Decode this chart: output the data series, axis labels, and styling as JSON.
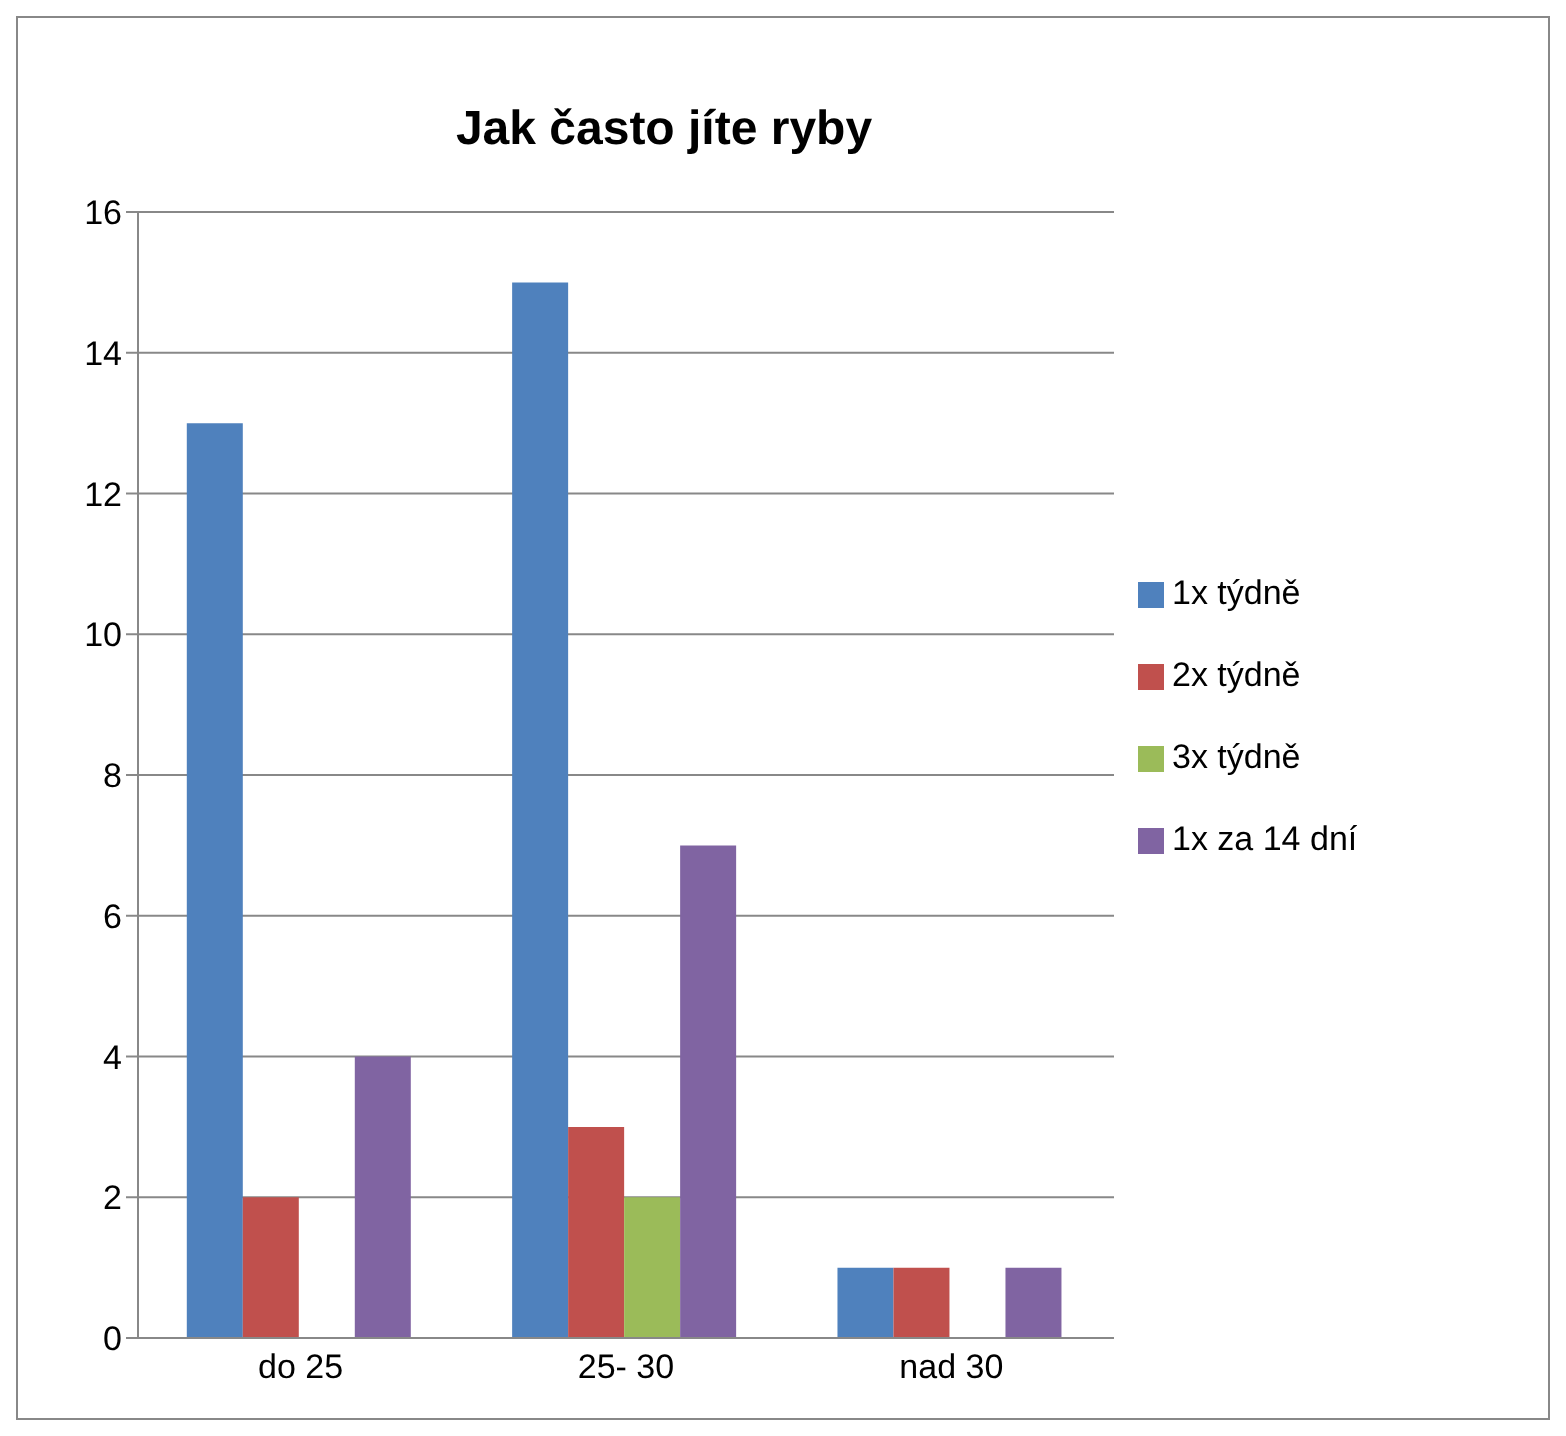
{
  "chart_data": {
    "type": "bar",
    "title": "Jak často jíte ryby",
    "categories": [
      "do 25",
      "25- 30",
      "nad 30"
    ],
    "series": [
      {
        "name": "1x týdně",
        "color": "#4f81bd",
        "values": [
          13,
          15,
          1
        ]
      },
      {
        "name": "2x týdně",
        "color": "#c0504d",
        "values": [
          2,
          3,
          1
        ]
      },
      {
        "name": "3x týdně",
        "color": "#9bbb59",
        "values": [
          0,
          2,
          0
        ]
      },
      {
        "name": "1x za 14 dní",
        "color": "#8064a2",
        "values": [
          4,
          7,
          1
        ]
      }
    ],
    "ylim": [
      0,
      16
    ],
    "yticks": [
      0,
      2,
      4,
      6,
      8,
      10,
      12,
      14,
      16
    ],
    "grid": "y",
    "legend": "right"
  }
}
